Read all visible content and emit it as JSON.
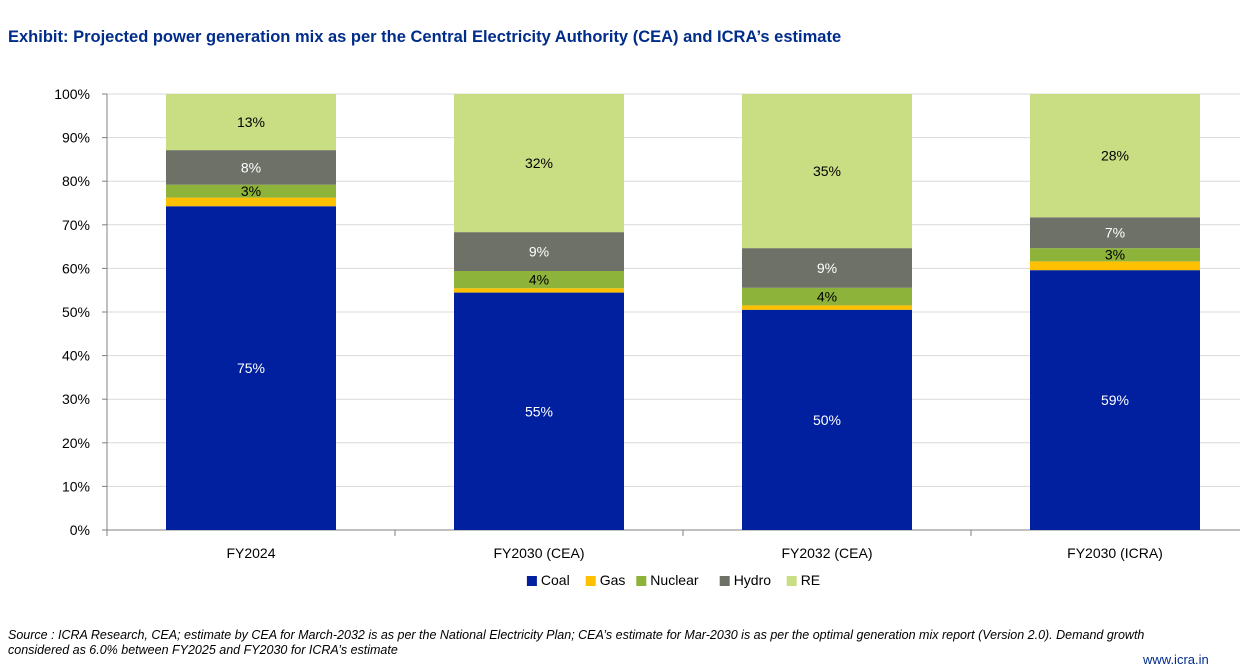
{
  "header": {
    "title": "Exhibit: Projected power generation mix as per the Central Electricity Authority (CEA) and ICRA’s estimate"
  },
  "chart_data": {
    "type": "bar",
    "stacked": true,
    "percent_stacked": true,
    "categories": [
      "FY2024",
      "FY2030 (CEA)",
      "FY2032 (CEA)",
      "FY2030 (ICRA)"
    ],
    "series": [
      {
        "name": "Coal",
        "color": "#0020a0",
        "values": [
          75,
          55,
          50,
          59
        ],
        "labels": [
          "75%",
          "55%",
          "50%",
          "59%"
        ]
      },
      {
        "name": "Gas",
        "color": "#ffc000",
        "values": [
          2,
          1,
          1,
          2
        ],
        "labels": [
          "",
          "",
          "",
          ""
        ]
      },
      {
        "name": "Nuclear",
        "color": "#8eb33b",
        "values": [
          3,
          4,
          4,
          3
        ],
        "labels": [
          "3%",
          "4%",
          "4%",
          "3%"
        ]
      },
      {
        "name": "Hydro",
        "color": "#6e7168",
        "values": [
          8,
          9,
          9,
          7
        ],
        "labels": [
          "8%",
          "9%",
          "9%",
          "7%"
        ]
      },
      {
        "name": "RE",
        "color": "#c9de83",
        "values": [
          13,
          32,
          35,
          28
        ],
        "labels": [
          "13%",
          "32%",
          "35%",
          "28%"
        ]
      }
    ],
    "ylim": [
      0,
      100
    ],
    "y_ticks": [
      "0%",
      "10%",
      "20%",
      "30%",
      "40%",
      "50%",
      "60%",
      "70%",
      "80%",
      "90%",
      "100%"
    ],
    "grid": true,
    "legend_position": "bottom"
  },
  "source": {
    "text": "Source : ICRA Research, CEA; estimate by CEA for March-2032 is as per the National Electricity Plan; CEA’s estimate for Mar-2030 is as per the optimal generation mix report (Version 2.0). Demand growth considered as 6.0% between FY2025 and FY2030 for ICRA’s estimate"
  },
  "footer": {
    "url": "www.icra.in"
  }
}
